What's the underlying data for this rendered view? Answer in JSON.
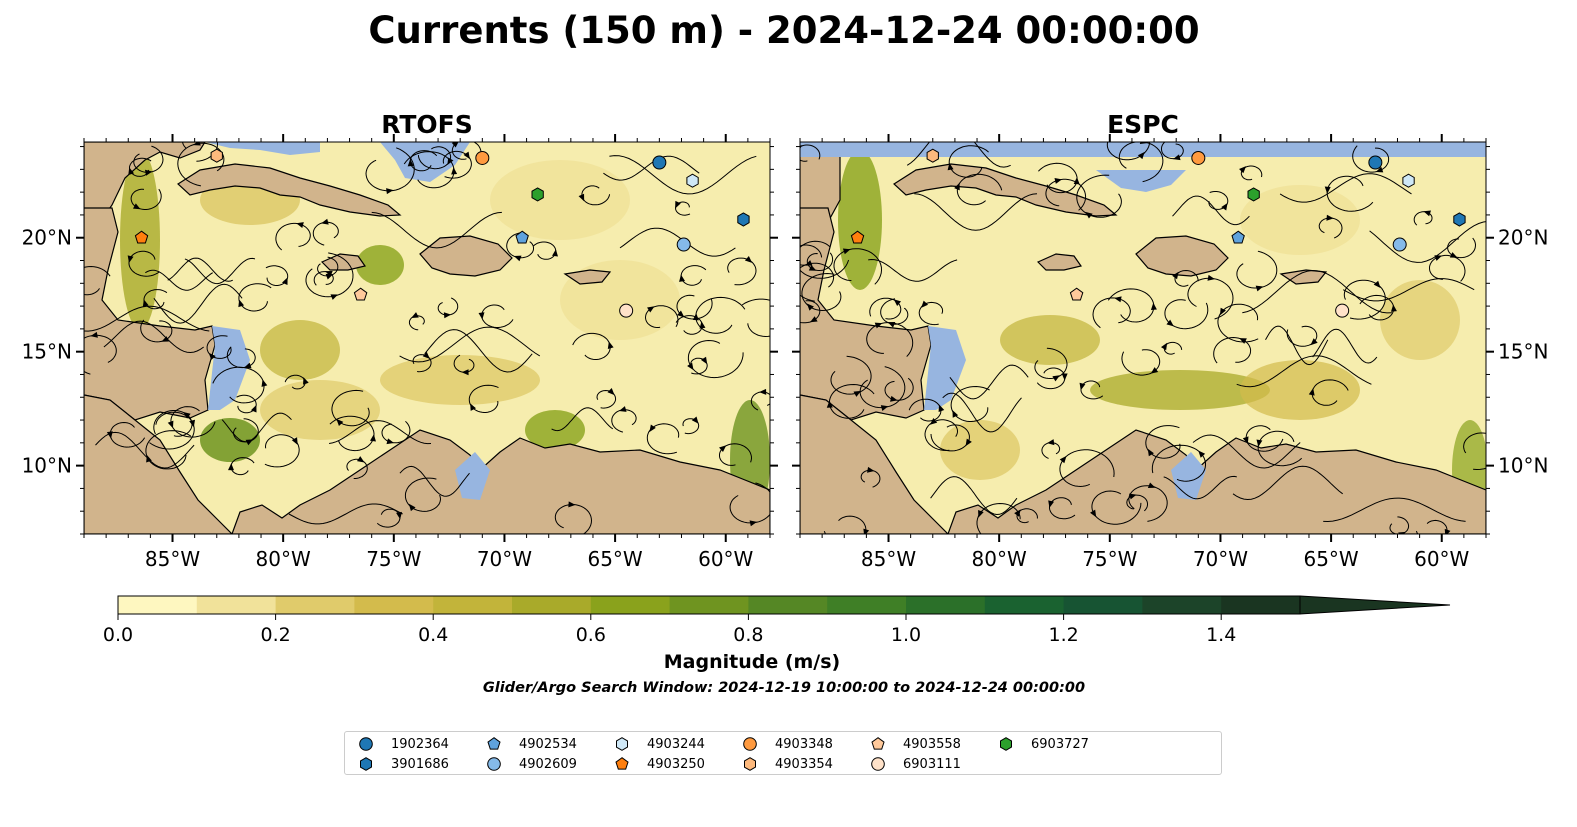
{
  "title": "Currents (150 m) - 2024-12-24 00:00:00",
  "panels": [
    {
      "title": "RTOFS"
    },
    {
      "title": "ESPC"
    }
  ],
  "map": {
    "lon_range": [
      -89,
      -58
    ],
    "lat_range": [
      7,
      24.2
    ],
    "lon_ticks": [
      "85°W",
      "80°W",
      "75°W",
      "70°W",
      "65°W",
      "60°W"
    ],
    "lon_tick_values": [
      -85,
      -80,
      -75,
      -70,
      -65,
      -60
    ],
    "lat_ticks": [
      "20°N",
      "15°N",
      "10°N"
    ],
    "lat_tick_values": [
      20,
      15,
      10
    ],
    "colors": {
      "land": "#D1B48C",
      "ocean_shallow": "#97B5E0",
      "coast": "#000000"
    }
  },
  "colorbar": {
    "label": "Magnitude (m/s)",
    "ticks": [
      "0.0",
      "0.2",
      "0.4",
      "0.6",
      "0.8",
      "1.0",
      "1.2",
      "1.4"
    ],
    "tick_values": [
      0,
      0.2,
      0.4,
      0.6,
      0.8,
      1.0,
      1.2,
      1.4
    ],
    "max": 1.5,
    "extend": "max",
    "bins": [
      "#FEF7C0",
      "#F1E29A",
      "#E0CB6B",
      "#D3BB4C",
      "#C2B43A",
      "#A9AA2A",
      "#8AA21C",
      "#6F9420",
      "#558725",
      "#3F7F26",
      "#2B7029",
      "#1A6230",
      "#175433",
      "#1C4429",
      "#1A3521"
    ]
  },
  "search_window": "Glider/Argo Search Window: 2024-12-19 10:00:00 to 2024-12-24 00:00:00",
  "legend": [
    {
      "id": "1902364",
      "marker": "circle",
      "color": "#1F77B4"
    },
    {
      "id": "3901686",
      "marker": "hexagon",
      "color": "#1F77B4"
    },
    {
      "id": "4902534",
      "marker": "pentagon",
      "color": "#5FA2DD"
    },
    {
      "id": "4902609",
      "marker": "circle",
      "color": "#85BAE9"
    },
    {
      "id": "4903244",
      "marker": "hexagon",
      "color": "#CFE8F7"
    },
    {
      "id": "4903250",
      "marker": "pentagon",
      "color": "#FF7F0E"
    },
    {
      "id": "4903348",
      "marker": "circle",
      "color": "#FF9A3F"
    },
    {
      "id": "4903354",
      "marker": "hexagon",
      "color": "#FDB97D"
    },
    {
      "id": "4903558",
      "marker": "pentagon",
      "color": "#FFC99B"
    },
    {
      "id": "6903111",
      "marker": "circle",
      "color": "#FFE2C9"
    },
    {
      "id": "6903727",
      "marker": "hexagon",
      "color": "#2CA02C"
    }
  ],
  "floats": [
    {
      "id": "1902364",
      "lon": -63.0,
      "lat": 23.3
    },
    {
      "id": "3901686",
      "lon": -59.2,
      "lat": 20.8
    },
    {
      "id": "4902534",
      "lon": -69.2,
      "lat": 20.0
    },
    {
      "id": "4902609",
      "lon": -61.9,
      "lat": 19.7
    },
    {
      "id": "4903244",
      "lon": -61.5,
      "lat": 22.5
    },
    {
      "id": "4903250",
      "lon": -86.4,
      "lat": 20.0
    },
    {
      "id": "4903348",
      "lon": -71.0,
      "lat": 23.5
    },
    {
      "id": "4903354",
      "lon": -83.0,
      "lat": 23.6
    },
    {
      "id": "4903558",
      "lon": -76.5,
      "lat": 17.5
    },
    {
      "id": "6903111",
      "lon": -64.5,
      "lat": 16.8
    },
    {
      "id": "6903727",
      "lon": -68.5,
      "lat": 21.9
    }
  ]
}
